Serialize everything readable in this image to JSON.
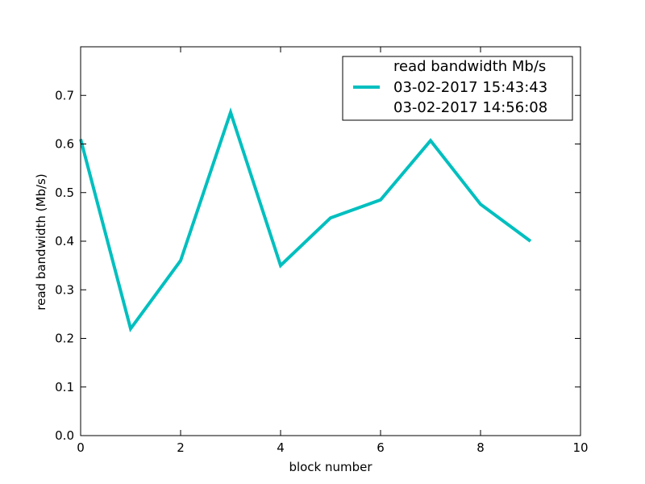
{
  "chart_data": {
    "type": "line",
    "title": "",
    "xlabel": "block number",
    "ylabel": "read bandwidth (Mb/s)",
    "xlim": [
      0,
      10
    ],
    "ylim": [
      0.0,
      0.8
    ],
    "xticks": [
      "0",
      "2",
      "4",
      "6",
      "8",
      "10"
    ],
    "yticks": [
      "0.0",
      "0.1",
      "0.2",
      "0.3",
      "0.4",
      "0.5",
      "0.6",
      "0.7"
    ],
    "grid": false,
    "legend_position": "top-right",
    "legend_lines": [
      "read bandwidth Mb/s",
      "03-02-2017 15:43:43",
      "03-02-2017 14:56:08"
    ],
    "series": [
      {
        "color": "#00bfbf",
        "x": [
          0,
          1,
          2,
          3,
          4,
          5,
          6,
          7,
          8,
          9
        ],
        "y": [
          0.61,
          0.22,
          0.36,
          0.665,
          0.35,
          0.448,
          0.485,
          0.607,
          0.476,
          0.4
        ]
      }
    ]
  }
}
